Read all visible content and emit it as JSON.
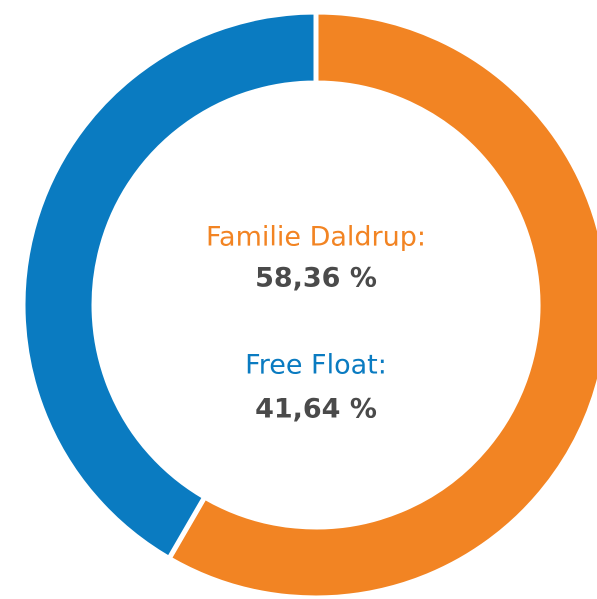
{
  "chart_data": {
    "type": "donut",
    "categories": [
      "Familie Daldrup:",
      "Free Float:"
    ],
    "values": [
      58.36,
      41.64
    ],
    "value_labels": [
      "58,36 %",
      "41,64 %"
    ],
    "colors": [
      "#f28423",
      "#0a7bc1"
    ]
  }
}
